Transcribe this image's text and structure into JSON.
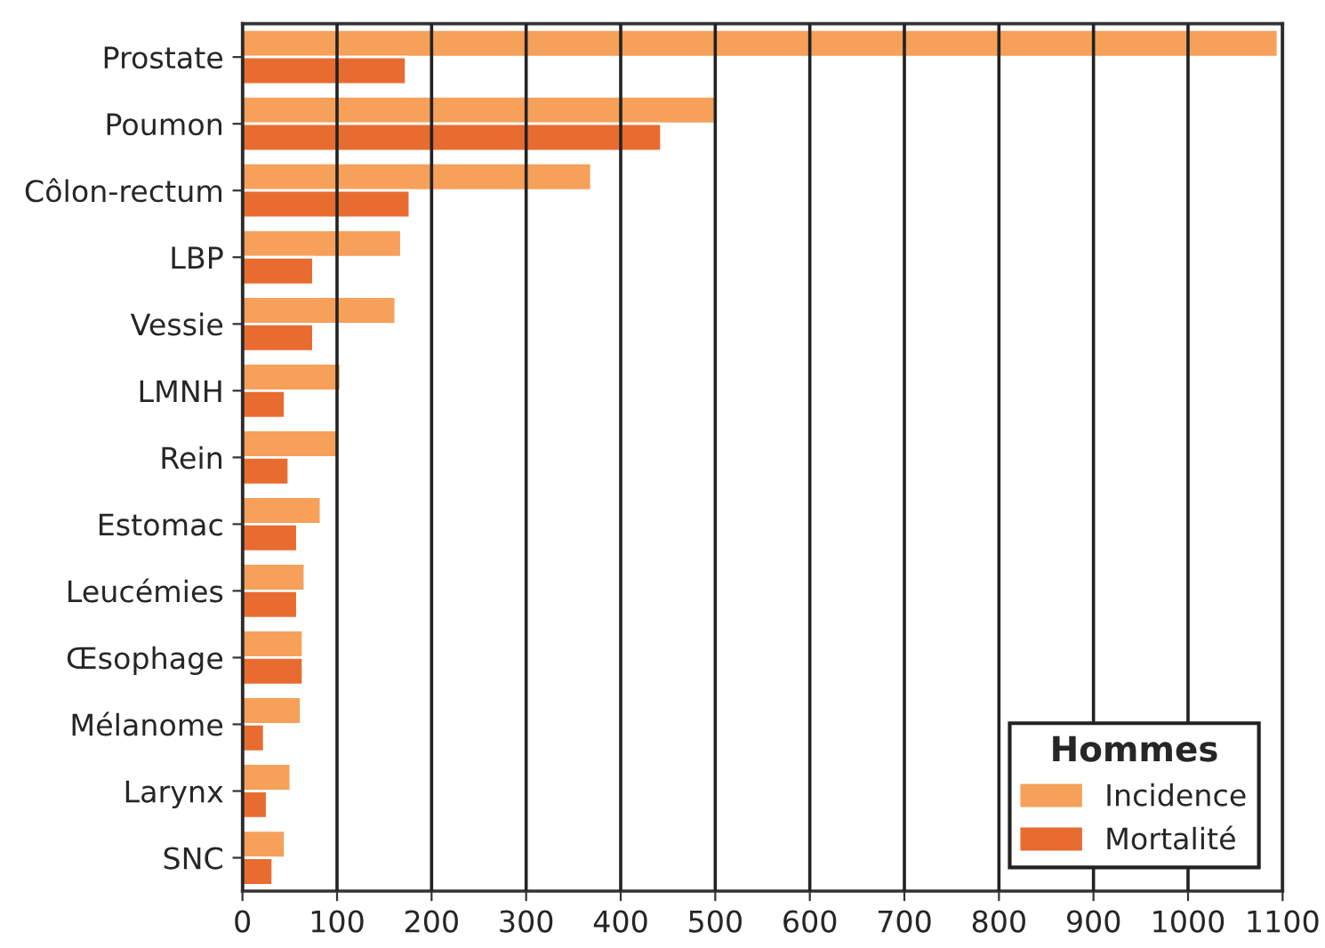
{
  "chart_data": {
    "type": "bar",
    "orientation": "horizontal",
    "categories": [
      "Prostate",
      "Poumon",
      "Côlon-rectum",
      "LBP",
      "Vessie",
      "LMNH",
      "Rein",
      "Estomac",
      "Leucémies",
      "Œsophage",
      "Mélanome",
      "Larynx",
      "SNC"
    ],
    "series": [
      {
        "name": "Incidence",
        "color": "#f6a05a",
        "values": [
          1095,
          500,
          369,
          168,
          162,
          104,
          102,
          83,
          66,
          64,
          62,
          51,
          45
        ]
      },
      {
        "name": "Mortalité",
        "color": "#e86c30",
        "values": [
          173,
          443,
          177,
          75,
          75,
          45,
          49,
          58,
          58,
          64,
          23,
          26,
          32
        ]
      }
    ],
    "legend_title": "Hommes",
    "legend": "bottom right",
    "xlim": [
      0,
      1100
    ],
    "xticks": [
      0,
      100,
      200,
      300,
      400,
      500,
      600,
      700,
      800,
      900,
      1000,
      1100
    ],
    "grid": "x"
  }
}
